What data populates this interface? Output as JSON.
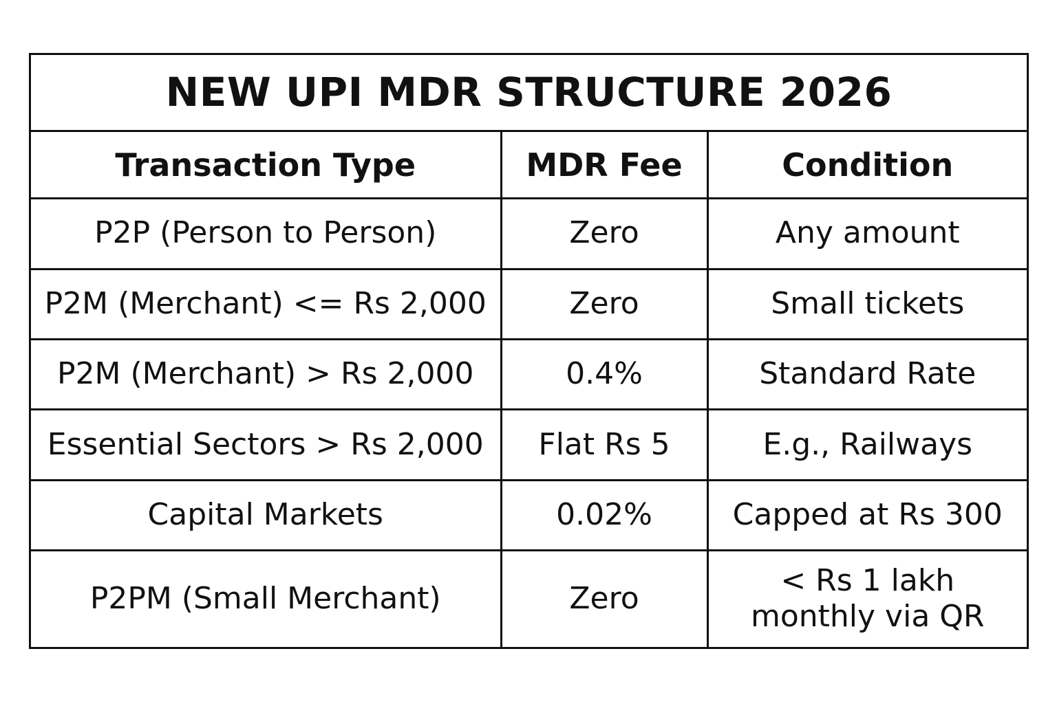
{
  "title": "NEW UPI MDR STRUCTURE 2026",
  "headers": {
    "col1": "Transaction Type",
    "col2": "MDR Fee",
    "col3": "Condition"
  },
  "rows": [
    {
      "type": "P2P (Person to Person)",
      "fee": "Zero",
      "condition": "Any amount"
    },
    {
      "type": "P2M (Merchant) <= Rs 2,000",
      "fee": "Zero",
      "condition": "Small tickets"
    },
    {
      "type": "P2M (Merchant) > Rs 2,000",
      "fee": "0.4%",
      "condition": "Standard Rate"
    },
    {
      "type": "Essential Sectors > Rs 2,000",
      "fee": "Flat Rs 5",
      "condition": "E.g., Railways"
    },
    {
      "type": "Capital Markets",
      "fee": "0.02%",
      "condition": "Capped at Rs 300"
    },
    {
      "type": "P2PM (Small Merchant)",
      "fee": "Zero",
      "condition_line1": "< Rs 1 lakh",
      "condition_line2": "monthly via QR"
    }
  ]
}
